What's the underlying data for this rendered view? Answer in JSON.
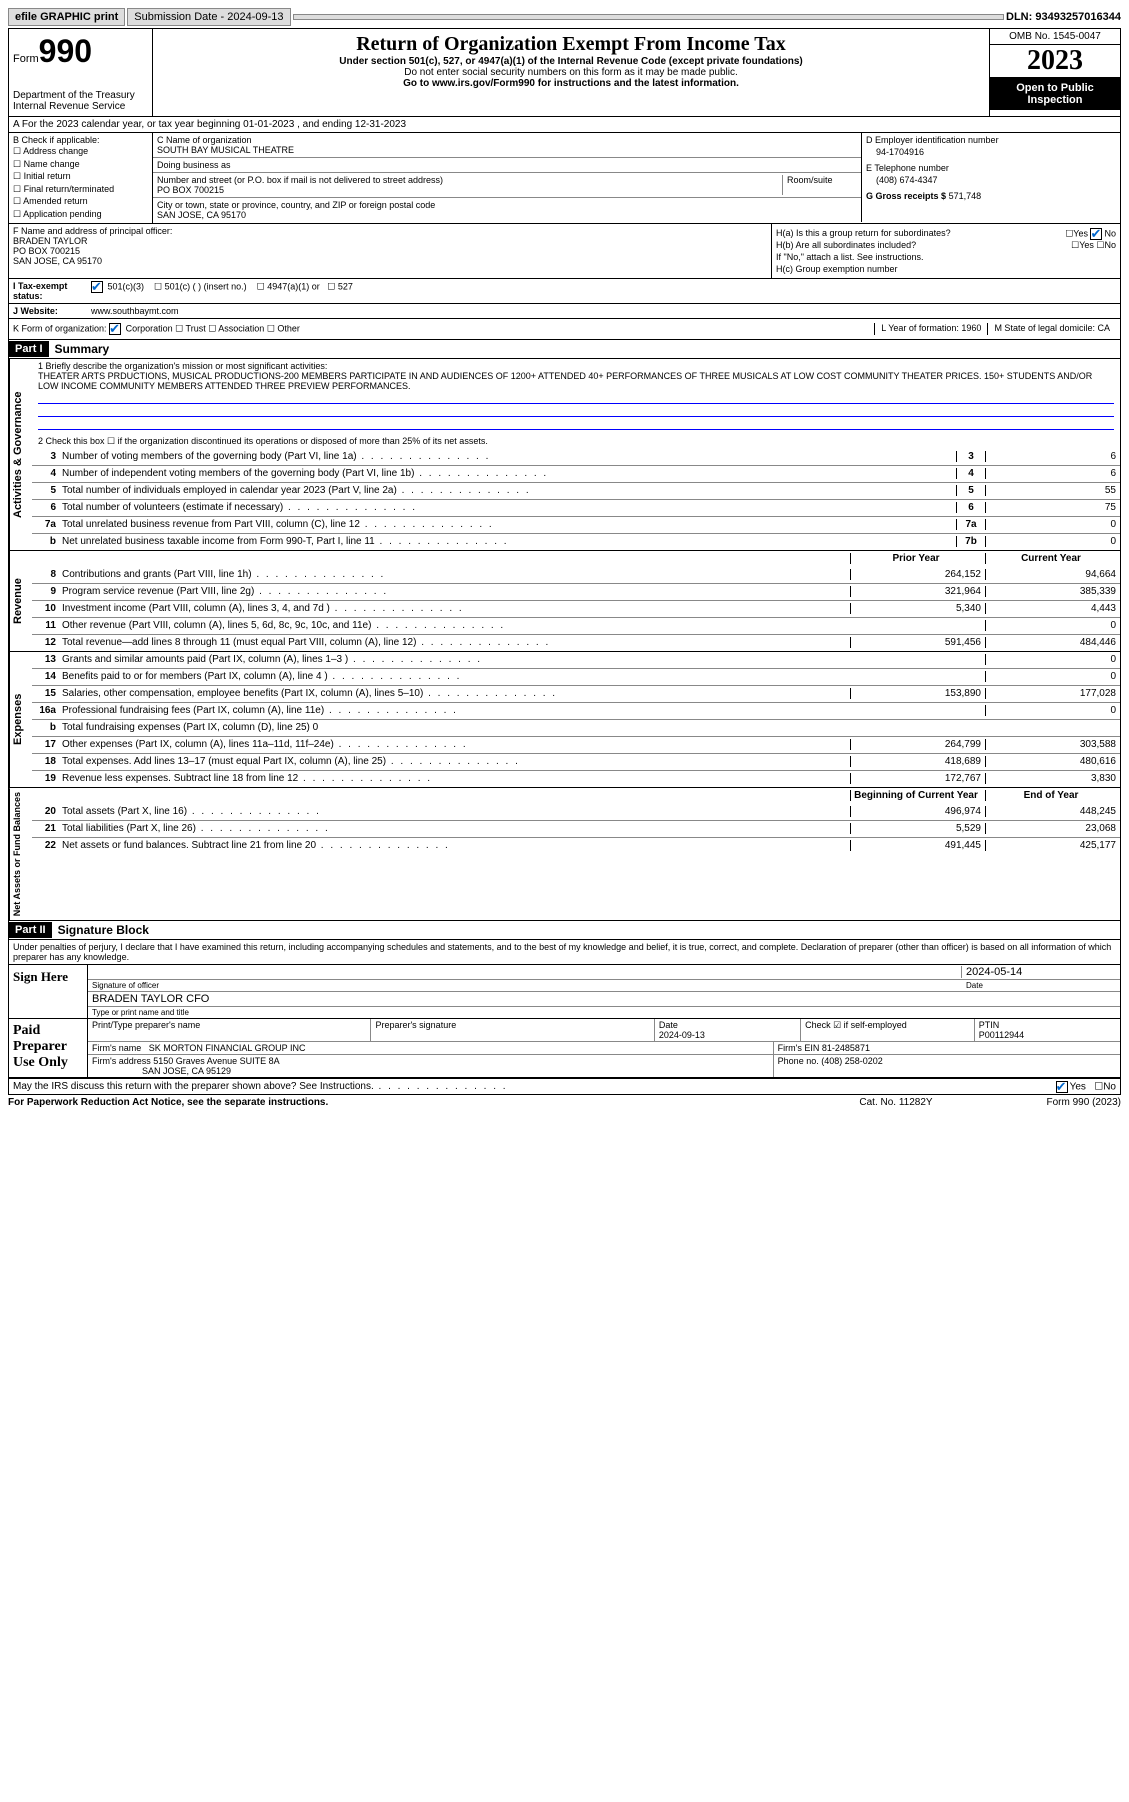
{
  "topbar": {
    "efile": "efile GRAPHIC print",
    "submission_label": "Submission Date - 2024-09-13",
    "dln": "DLN: 93493257016344"
  },
  "header": {
    "form_word": "Form",
    "form_num": "990",
    "dept": "Department of the Treasury",
    "irs": "Internal Revenue Service",
    "title": "Return of Organization Exempt From Income Tax",
    "sub1": "Under section 501(c), 527, or 4947(a)(1) of the Internal Revenue Code (except private foundations)",
    "sub2": "Do not enter social security numbers on this form as it may be made public.",
    "sub3": "Go to www.irs.gov/Form990 for instructions and the latest information.",
    "omb": "OMB No. 1545-0047",
    "year": "2023",
    "inspect": "Open to Public Inspection"
  },
  "row_a": "A For the 2023 calendar year, or tax year beginning 01-01-2023   , and ending 12-31-2023",
  "col_b": {
    "title": "B Check if applicable:",
    "items": [
      "Address change",
      "Name change",
      "Initial return",
      "Final return/terminated",
      "Amended return",
      "Application pending"
    ]
  },
  "col_c": {
    "name_label": "C Name of organization",
    "name": "SOUTH BAY MUSICAL THEATRE",
    "dba_label": "Doing business as",
    "dba": "",
    "addr_label": "Number and street (or P.O. box if mail is not delivered to street address)",
    "room_label": "Room/suite",
    "addr": "PO BOX 700215",
    "city_label": "City or town, state or province, country, and ZIP or foreign postal code",
    "city": "SAN JOSE, CA  95170"
  },
  "col_de": {
    "d_label": "D Employer identification number",
    "d_val": "94-1704916",
    "e_label": "E Telephone number",
    "e_val": "(408) 674-4347",
    "g_label": "G Gross receipts $",
    "g_val": "571,748"
  },
  "col_f": {
    "label": "F Name and address of principal officer:",
    "name": "BRADEN TAYLOR",
    "addr1": "PO BOX 700215",
    "addr2": "SAN JOSE, CA  95170"
  },
  "col_h": {
    "ha": "H(a)  Is this a group return for subordinates?",
    "ha_ans": "No",
    "hb": "H(b)  Are all subordinates included?",
    "hb_note": "If \"No,\" attach a list. See instructions.",
    "hc": "H(c)  Group exemption number"
  },
  "row_i": {
    "label": "I   Tax-exempt status:",
    "opts": [
      "501(c)(3)",
      "501(c) (  ) (insert no.)",
      "4947(a)(1) or",
      "527"
    ]
  },
  "row_j": {
    "label": "J   Website:",
    "val": "www.southbaymt.com"
  },
  "row_k": {
    "k": "K Form of organization:",
    "opts": [
      "Corporation",
      "Trust",
      "Association",
      "Other"
    ],
    "l": "L Year of formation: 1960",
    "m": "M State of legal domicile: CA"
  },
  "part1": {
    "hdr": "Part I",
    "title": "Summary",
    "q1_label": "1   Briefly describe the organization's mission or most significant activities:",
    "q1_text": "THEATER ARTS PRDUCTIONS, MUSICAL PRODUCTIONS-200 MEMBERS PARTICIPATE IN AND AUDIENCES OF 1200+ ATTENDED 40+ PERFORMANCES OF THREE MUSICALS AT LOW COST COMMUNITY THEATER PRICES. 150+ STUDENTS AND/OR LOW INCOME COMMUNITY MEMBERS ATTENDED THREE PREVIEW PERFORMANCES.",
    "q2": "2   Check this box ☐ if the organization discontinued its operations or disposed of more than 25% of its net assets."
  },
  "gov_lines": [
    {
      "n": "3",
      "d": "Number of voting members of the governing body (Part VI, line 1a)",
      "b": "3",
      "v": "6"
    },
    {
      "n": "4",
      "d": "Number of independent voting members of the governing body (Part VI, line 1b)",
      "b": "4",
      "v": "6"
    },
    {
      "n": "5",
      "d": "Total number of individuals employed in calendar year 2023 (Part V, line 2a)",
      "b": "5",
      "v": "55"
    },
    {
      "n": "6",
      "d": "Total number of volunteers (estimate if necessary)",
      "b": "6",
      "v": "75"
    },
    {
      "n": "7a",
      "d": "Total unrelated business revenue from Part VIII, column (C), line 12",
      "b": "7a",
      "v": "0"
    },
    {
      "n": "b",
      "d": "Net unrelated business taxable income from Form 990-T, Part I, line 11",
      "b": "7b",
      "v": "0"
    }
  ],
  "rev_hdr": {
    "py": "Prior Year",
    "cy": "Current Year"
  },
  "rev_lines": [
    {
      "n": "8",
      "d": "Contributions and grants (Part VIII, line 1h)",
      "py": "264,152",
      "cy": "94,664"
    },
    {
      "n": "9",
      "d": "Program service revenue (Part VIII, line 2g)",
      "py": "321,964",
      "cy": "385,339"
    },
    {
      "n": "10",
      "d": "Investment income (Part VIII, column (A), lines 3, 4, and 7d )",
      "py": "5,340",
      "cy": "4,443"
    },
    {
      "n": "11",
      "d": "Other revenue (Part VIII, column (A), lines 5, 6d, 8c, 9c, 10c, and 11e)",
      "py": "",
      "cy": "0"
    },
    {
      "n": "12",
      "d": "Total revenue—add lines 8 through 11 (must equal Part VIII, column (A), line 12)",
      "py": "591,456",
      "cy": "484,446"
    }
  ],
  "exp_lines": [
    {
      "n": "13",
      "d": "Grants and similar amounts paid (Part IX, column (A), lines 1–3 )",
      "py": "",
      "cy": "0"
    },
    {
      "n": "14",
      "d": "Benefits paid to or for members (Part IX, column (A), line 4 )",
      "py": "",
      "cy": "0"
    },
    {
      "n": "15",
      "d": "Salaries, other compensation, employee benefits (Part IX, column (A), lines 5–10)",
      "py": "153,890",
      "cy": "177,028"
    },
    {
      "n": "16a",
      "d": "Professional fundraising fees (Part IX, column (A), line 11e)",
      "py": "",
      "cy": "0"
    },
    {
      "n": "b",
      "d": "Total fundraising expenses (Part IX, column (D), line 25) 0",
      "py": "—",
      "cy": "—"
    },
    {
      "n": "17",
      "d": "Other expenses (Part IX, column (A), lines 11a–11d, 11f–24e)",
      "py": "264,799",
      "cy": "303,588"
    },
    {
      "n": "18",
      "d": "Total expenses. Add lines 13–17 (must equal Part IX, column (A), line 25)",
      "py": "418,689",
      "cy": "480,616"
    },
    {
      "n": "19",
      "d": "Revenue less expenses. Subtract line 18 from line 12",
      "py": "172,767",
      "cy": "3,830"
    }
  ],
  "na_hdr": {
    "py": "Beginning of Current Year",
    "cy": "End of Year"
  },
  "na_lines": [
    {
      "n": "20",
      "d": "Total assets (Part X, line 16)",
      "py": "496,974",
      "cy": "448,245"
    },
    {
      "n": "21",
      "d": "Total liabilities (Part X, line 26)",
      "py": "5,529",
      "cy": "23,068"
    },
    {
      "n": "22",
      "d": "Net assets or fund balances. Subtract line 21 from line 20",
      "py": "491,445",
      "cy": "425,177"
    }
  ],
  "part2": {
    "hdr": "Part II",
    "title": "Signature Block",
    "decl": "Under penalties of perjury, I declare that I have examined this return, including accompanying schedules and statements, and to the best of my knowledge and belief, it is true, correct, and complete. Declaration of preparer (other than officer) is based on all information of which preparer has any knowledge."
  },
  "sign": {
    "here": "Sign Here",
    "sig_label": "Signature of officer",
    "date_label": "Date",
    "date": "2024-05-14",
    "name": "BRADEN TAYLOR  CFO",
    "name_label": "Type or print name and title"
  },
  "prep": {
    "title": "Paid Preparer Use Only",
    "h1": "Print/Type preparer's name",
    "h2": "Preparer's signature",
    "h3": "Date",
    "h3v": "2024-09-13",
    "h4": "Check ☑ if self-employed",
    "h5": "PTIN",
    "h5v": "P00112944",
    "firm_label": "Firm's name",
    "firm": "SK MORTON FINANCIAL GROUP INC",
    "ein_label": "Firm's EIN",
    "ein": "81-2485871",
    "addr_label": "Firm's address",
    "addr1": "5150 Graves Avenue SUITE 8A",
    "addr2": "SAN JOSE, CA    95129",
    "phone_label": "Phone no.",
    "phone": "(408) 258-0202"
  },
  "discuss": "May the IRS discuss this return with the preparer shown above? See Instructions.",
  "foot": {
    "l": "For Paperwork Reduction Act Notice, see the separate instructions.",
    "m": "Cat. No. 11282Y",
    "r": "Form 990 (2023)"
  },
  "side_labels": {
    "gov": "Activities & Governance",
    "rev": "Revenue",
    "exp": "Expenses",
    "na": "Net Assets or Fund Balances"
  }
}
